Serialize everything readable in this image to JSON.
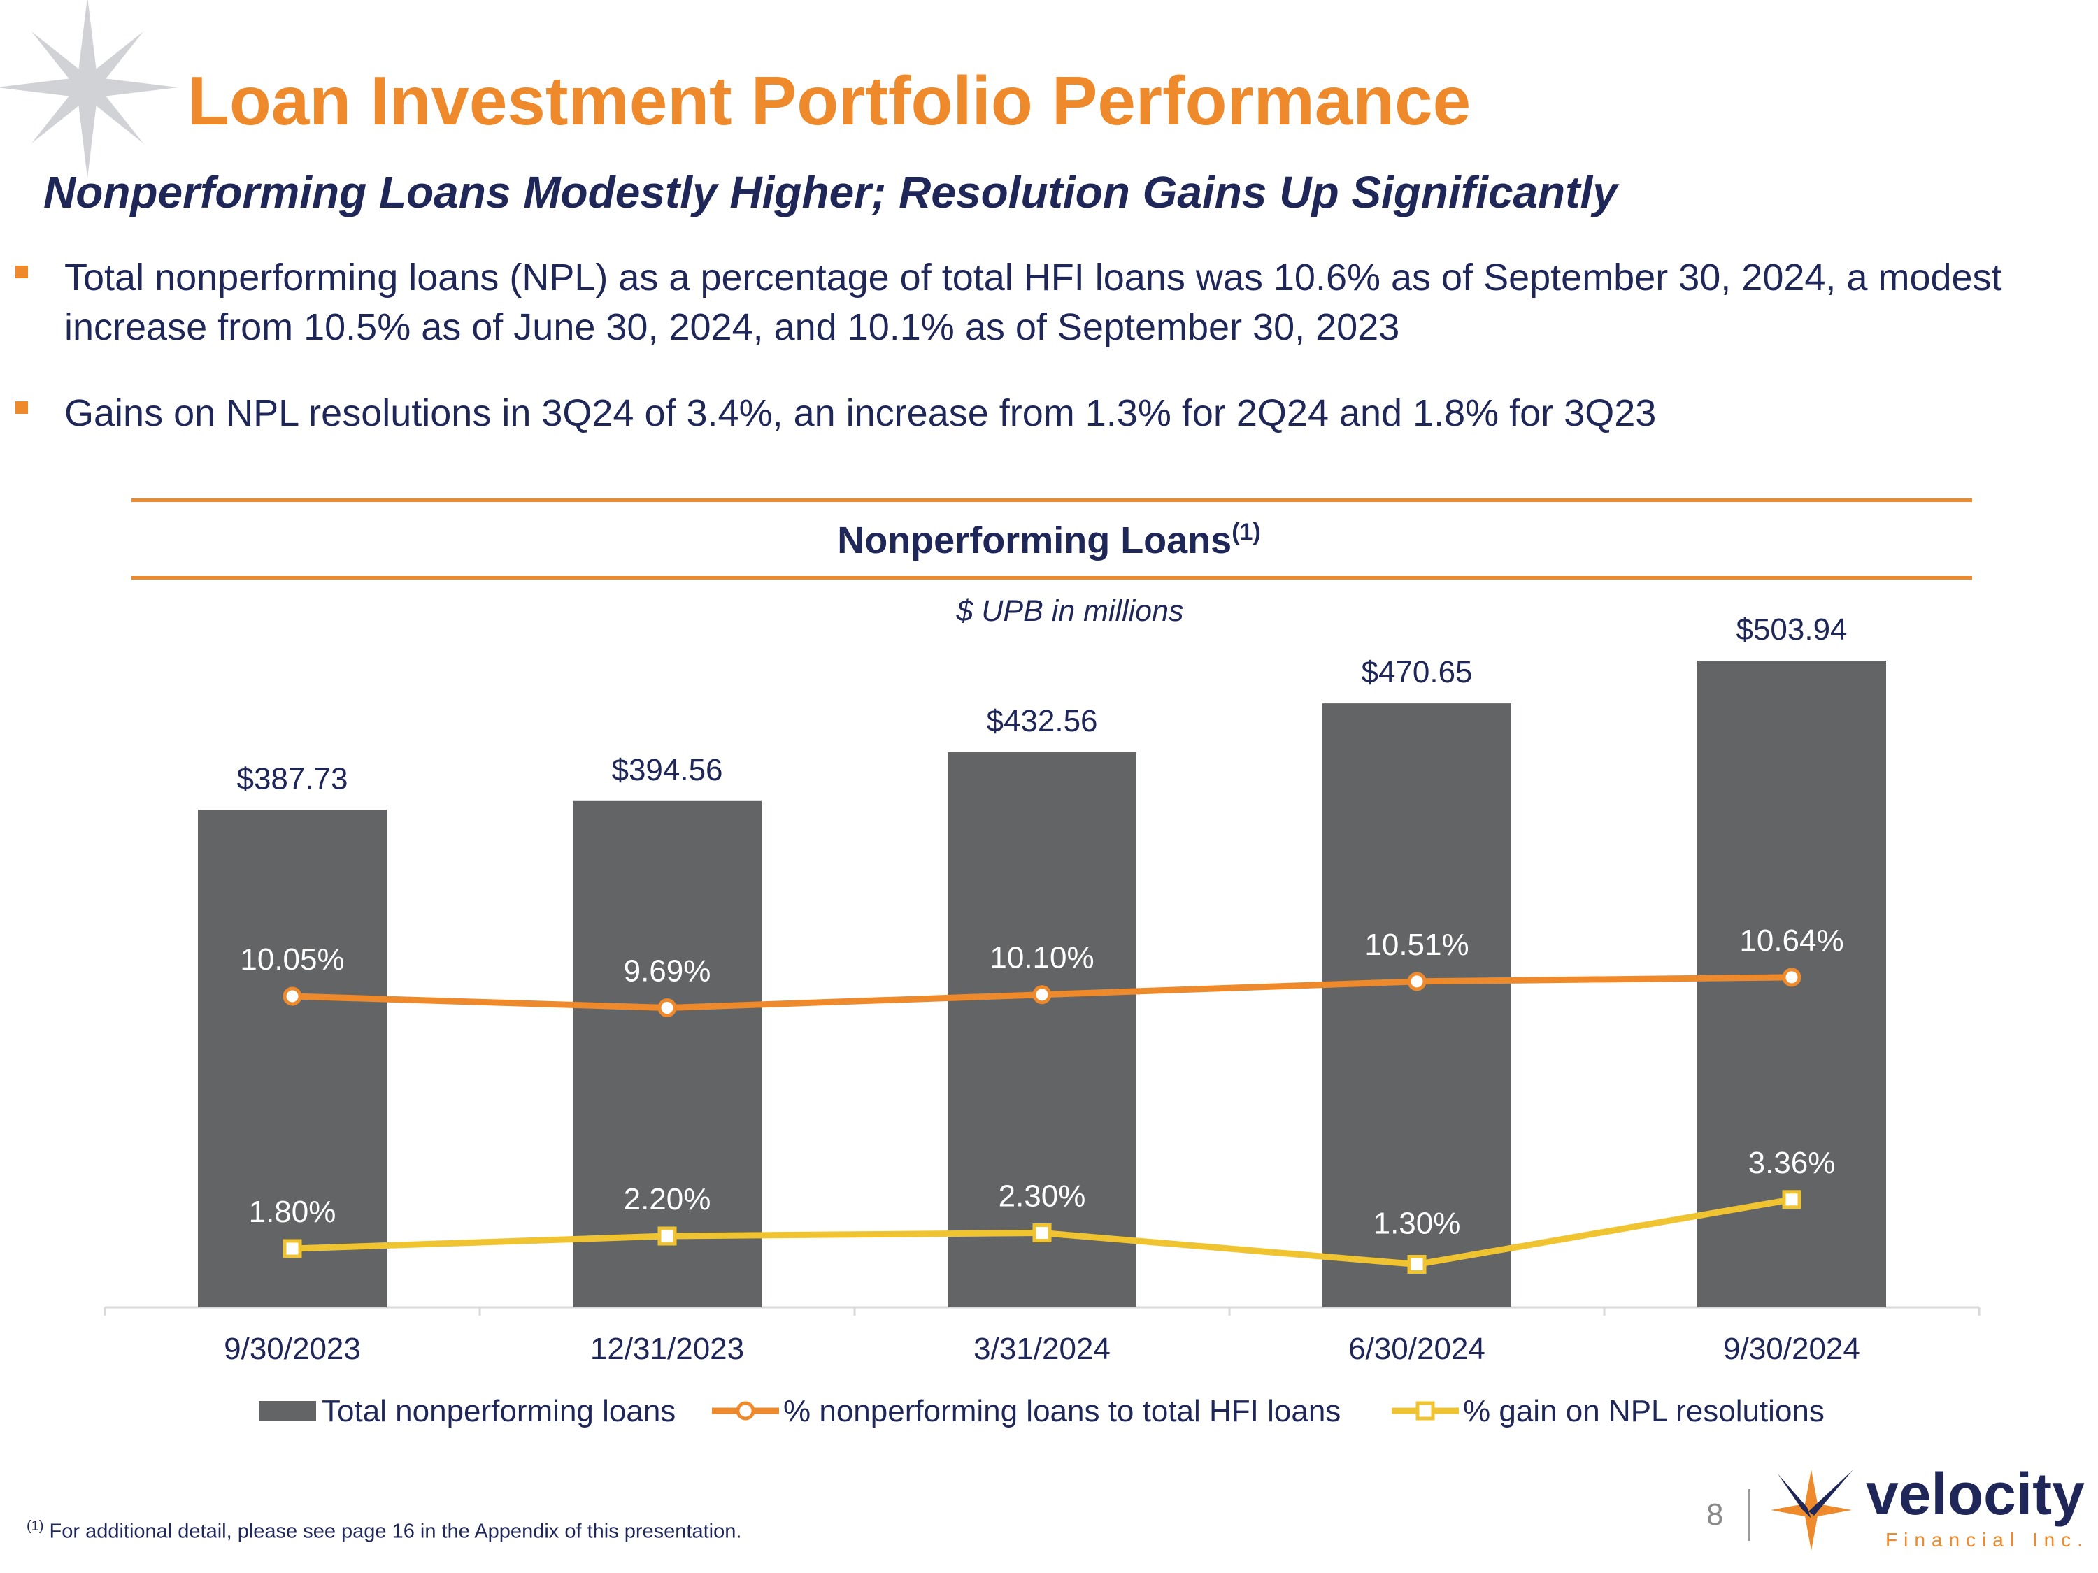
{
  "slide": {
    "title": "Loan Investment Portfolio Performance",
    "subtitle": "Nonperforming Loans Modestly Higher; Resolution Gains Up Significantly",
    "bullets": [
      "Total nonperforming loans (NPL) as a percentage of total HFI loans was 10.6% as of September 30, 2024, a modest increase from 10.5% as of June 30, 2024, and 10.1% as of September 30, 2023",
      "Gains on NPL resolutions in 3Q24 of 3.4%, an increase from 1.3% for 2Q24 and 1.8% for 3Q23"
    ],
    "footnote_marker": "(1)",
    "footnote": " For additional detail, please see page 16 in the Appendix of this presentation.",
    "page_number": "8"
  },
  "logo": {
    "name": "velocity",
    "tagline": "Financial Inc."
  },
  "colors": {
    "accent": "#ee8a2b",
    "navy": "#1f2758",
    "bar": "#636466",
    "gain_line": "#f0c330"
  },
  "chart_data": {
    "type": "bar",
    "title": "Nonperforming Loans",
    "title_superscript": "(1)",
    "subtitle": "$ UPB in millions",
    "categories": [
      "9/30/2023",
      "12/31/2023",
      "3/31/2024",
      "6/30/2024",
      "9/30/2024"
    ],
    "series": [
      {
        "name": "Total nonperforming loans",
        "kind": "bar",
        "values": [
          387.73,
          394.56,
          432.56,
          470.65,
          503.94
        ],
        "labels": [
          "$387.73",
          "$394.56",
          "$432.56",
          "$470.65",
          "$503.94"
        ],
        "color": "#636466"
      },
      {
        "name": "% nonperforming loans to total HFI loans",
        "kind": "line",
        "marker": "circle",
        "values": [
          10.05,
          9.69,
          10.1,
          10.51,
          10.64
        ],
        "labels": [
          "10.05%",
          "9.69%",
          "10.10%",
          "10.51%",
          "10.64%"
        ],
        "color": "#ee8a2b"
      },
      {
        "name": "% gain on NPL resolutions",
        "kind": "line",
        "marker": "square",
        "values": [
          1.8,
          2.2,
          2.3,
          1.3,
          3.36
        ],
        "labels": [
          "1.80%",
          "2.20%",
          "2.30%",
          "1.30%",
          "3.36%"
        ],
        "color": "#f0c330"
      }
    ],
    "ylim_bars": [
      0,
      560
    ],
    "legend_position": "bottom",
    "grid": false
  }
}
